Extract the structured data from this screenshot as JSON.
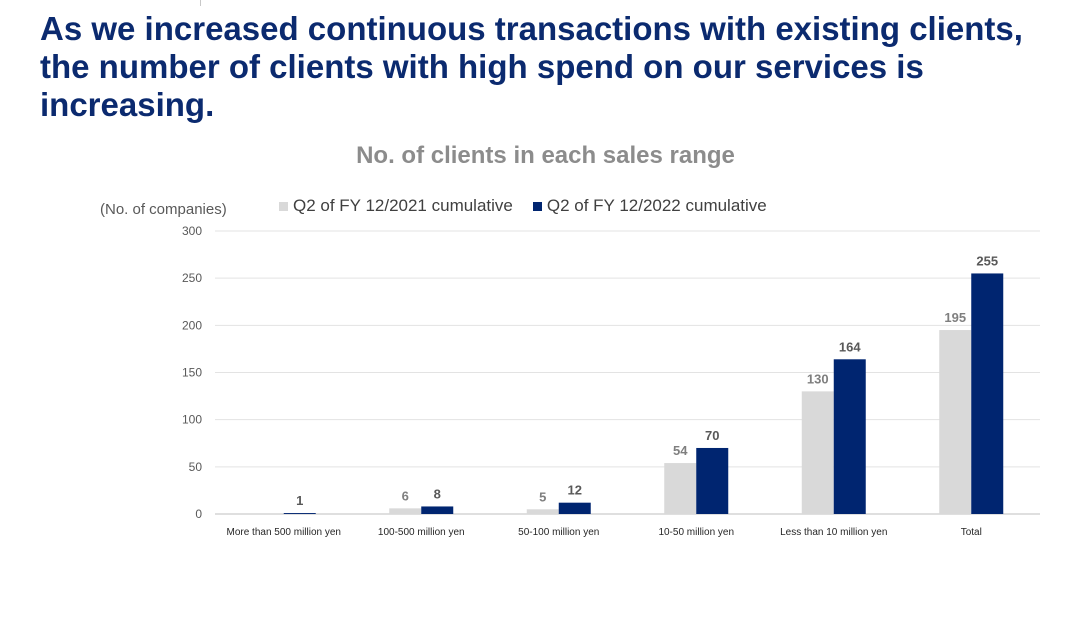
{
  "page": {
    "title": "As we increased continuous transactions with existing clients, the number of clients with high spend on our services is increasing."
  },
  "chart_data": {
    "type": "bar",
    "title": "No. of clients in each sales range",
    "ylabel": "(No. of companies)",
    "xlabel": "",
    "ylim": [
      0,
      300
    ],
    "yticks": [
      0,
      50,
      100,
      150,
      200,
      250,
      300
    ],
    "grid": true,
    "legend_position": "top",
    "categories": [
      "More than 500 million yen",
      "100-500 million yen",
      "50-100 million yen",
      "10-50 million yen",
      "Less than 10 million yen",
      "Total"
    ],
    "series": [
      {
        "name": "Q2 of FY 12/2021 cumulative",
        "color": "#d9d9d9",
        "label_color": "#7f7f7f",
        "values": [
          0,
          6,
          5,
          54,
          130,
          195
        ],
        "labels": [
          "",
          "6",
          "5",
          "54",
          "130",
          "195"
        ]
      },
      {
        "name": "Q2 of FY 12/2022 cumulative",
        "color": "#002570",
        "label_color": "#595959",
        "values": [
          1,
          8,
          12,
          70,
          164,
          255
        ],
        "labels": [
          "1",
          "8",
          "12",
          "70",
          "164",
          "255"
        ]
      }
    ]
  }
}
